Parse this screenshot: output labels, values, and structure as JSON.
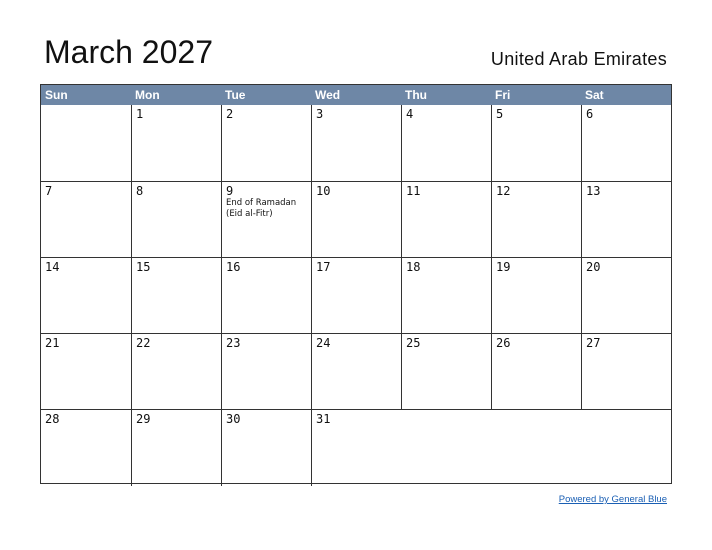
{
  "calendar": {
    "title": "March 2027",
    "country": "United Arab Emirates",
    "weekdays": [
      "Sun",
      "Mon",
      "Tue",
      "Wed",
      "Thu",
      "Fri",
      "Sat"
    ],
    "weeks": [
      [
        {
          "day": ""
        },
        {
          "day": "1"
        },
        {
          "day": "2"
        },
        {
          "day": "3"
        },
        {
          "day": "4"
        },
        {
          "day": "5"
        },
        {
          "day": "6"
        }
      ],
      [
        {
          "day": "7"
        },
        {
          "day": "8"
        },
        {
          "day": "9",
          "event": "End of Ramadan (Eid al-Fitr)"
        },
        {
          "day": "10"
        },
        {
          "day": "11"
        },
        {
          "day": "12"
        },
        {
          "day": "13"
        }
      ],
      [
        {
          "day": "14"
        },
        {
          "day": "15"
        },
        {
          "day": "16"
        },
        {
          "day": "17"
        },
        {
          "day": "18"
        },
        {
          "day": "19"
        },
        {
          "day": "20"
        }
      ],
      [
        {
          "day": "21"
        },
        {
          "day": "22"
        },
        {
          "day": "23"
        },
        {
          "day": "24"
        },
        {
          "day": "25"
        },
        {
          "day": "26"
        },
        {
          "day": "27"
        }
      ],
      [
        {
          "day": "28"
        },
        {
          "day": "29"
        },
        {
          "day": "30"
        },
        {
          "day": "31"
        },
        {
          "day": ""
        },
        {
          "day": ""
        },
        {
          "day": ""
        }
      ]
    ]
  },
  "footer": {
    "link_text": "Powered by General Blue"
  },
  "colors": {
    "header_bg": "#6e87a6",
    "header_text": "#ffffff",
    "grid_line": "#333333",
    "link": "#1a5fb4"
  }
}
